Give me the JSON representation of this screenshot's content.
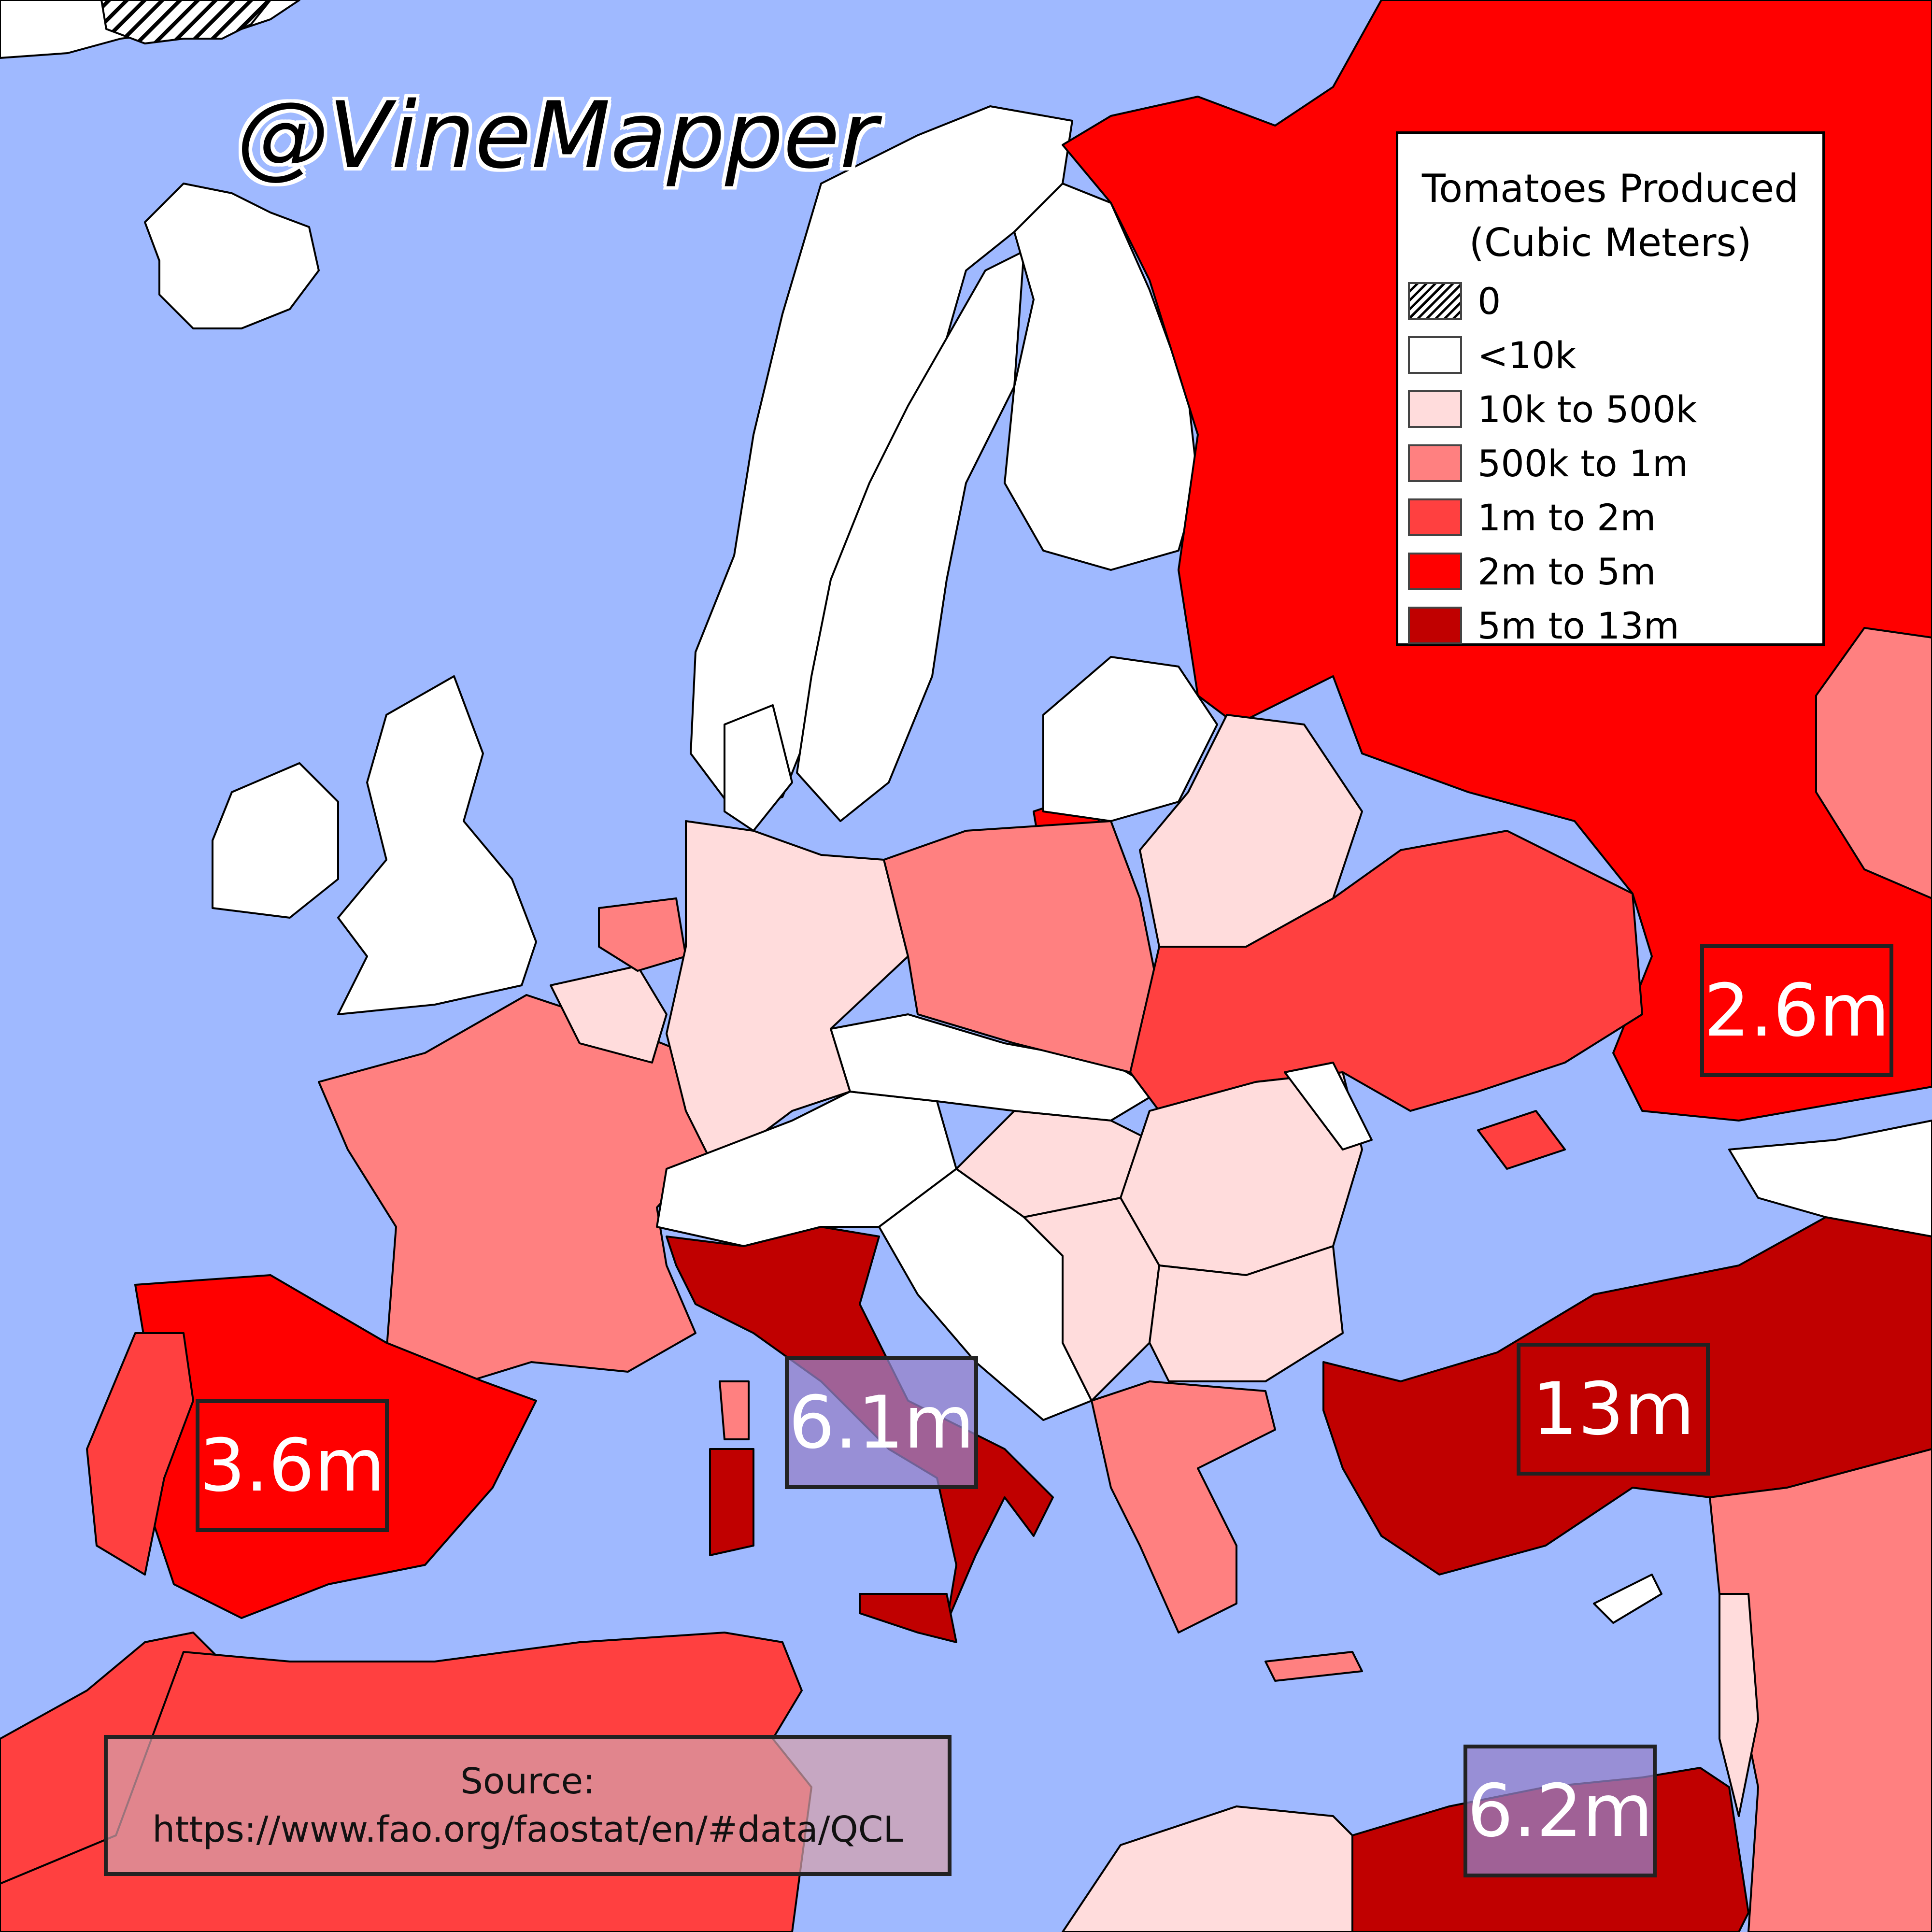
{
  "watermark": "@VineMapper",
  "legend": {
    "title_line1": "Tomatoes Produced",
    "title_line2": "(Cubic Meters)",
    "items": [
      {
        "label": "0",
        "color": "hatched"
      },
      {
        "label": "<10k",
        "color": "#ffffff"
      },
      {
        "label": "10k to 500k",
        "color": "#ffdcdc"
      },
      {
        "label": "500k to 1m",
        "color": "#ff8080"
      },
      {
        "label": "1m to 2m",
        "color": "#ff4040"
      },
      {
        "label": "2m to 5m",
        "color": "#ff0000"
      },
      {
        "label": "5m to 13m",
        "color": "#c00000"
      }
    ]
  },
  "callouts": {
    "russia": "2.6m",
    "spain": "3.6m",
    "italy": "6.1m",
    "turkey": "13m",
    "egypt": "6.2m"
  },
  "source": {
    "label": "Source:",
    "url": "https://www.fao.org/faostat/en/#data/QCL"
  },
  "colors": {
    "sea": "#9fb9ff",
    "none": "#ffffff",
    "low": "#ffdcdc",
    "mid": "#ff8080",
    "high": "#ff4040",
    "veryhigh": "#ff0000",
    "top": "#c00000"
  }
}
